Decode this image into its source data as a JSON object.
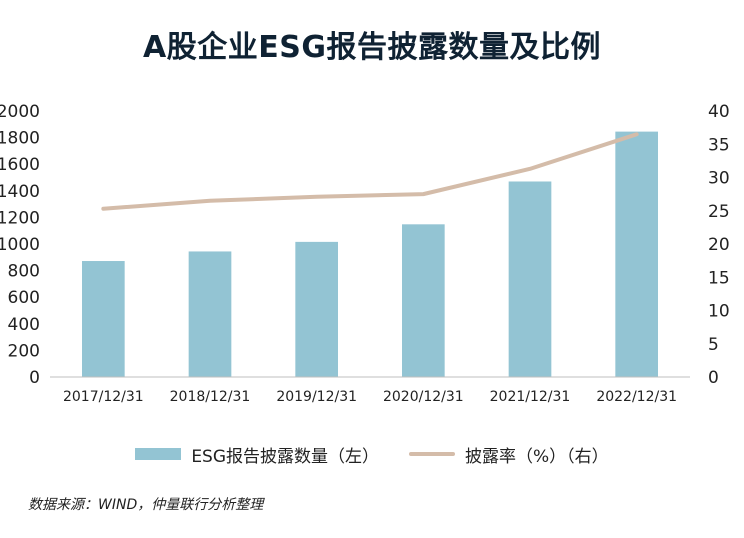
{
  "chart_data": {
    "type": "bar",
    "title": "A股企业ESG报告披露数量及比例",
    "categories": [
      "2017/12/31",
      "2018/12/31",
      "2019/12/31",
      "2020/12/31",
      "2021/12/31",
      "2022/12/31"
    ],
    "series": [
      {
        "name": "ESG报告披露数量（左）",
        "type": "bar",
        "axis": "left",
        "color": "#93c4d3",
        "values": [
          872,
          944,
          1016,
          1148,
          1470,
          1845
        ]
      },
      {
        "name": "披露率（%）（右）",
        "type": "line",
        "axis": "right",
        "color": "#d4bca9",
        "values": [
          25.3,
          26.5,
          27.1,
          27.5,
          31.3,
          36.5
        ]
      }
    ],
    "y_left": {
      "min": 0,
      "max": 2000,
      "step": 200
    },
    "y_right": {
      "min": 0,
      "max": 40,
      "step": 5
    },
    "grid": false,
    "legend_position": "bottom"
  },
  "source": "数据来源：WIND，仲量联行分析整理"
}
